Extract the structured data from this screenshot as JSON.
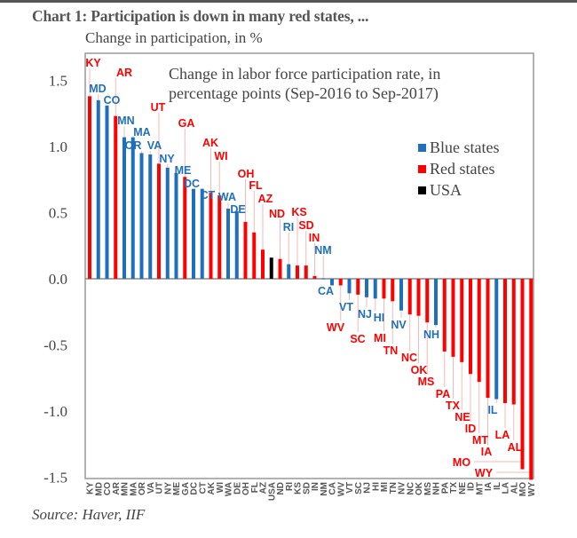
{
  "title": "Chart 1: Participation is down in many red states, ...",
  "subtitle": "Change in participation, in %",
  "source": "Source: Haver, IIF",
  "colors": {
    "Blue states": "#1f6fbf",
    "Red states": "#ff0000",
    "USA": "#000000"
  },
  "chart_data": {
    "type": "bar",
    "annotation": "Change in labor force participation rate, in percentage points (Sep-2016 to Sep-2017)",
    "annotation_lines": [
      "Change in labor force participation rate, in",
      "percentage points (Sep-2016 to Sep-2017)"
    ],
    "ylim": [
      -1.5,
      1.6
    ],
    "yticks": [
      "1.5",
      "1.0",
      "0.5",
      "0.0",
      "-0.5",
      "-1.0",
      "-1.5"
    ],
    "ytick_values": [
      1.5,
      1.0,
      0.5,
      0.0,
      -0.5,
      -1.0,
      -1.5
    ],
    "legend": {
      "position": "right",
      "entries": [
        "Blue states",
        "Red states",
        "USA"
      ]
    },
    "categories": [
      "KY",
      "MD",
      "CO",
      "AR",
      "MN",
      "MA",
      "OR",
      "VA",
      "UT",
      "NY",
      "ME",
      "GA",
      "DC",
      "CT",
      "AK",
      "WI",
      "WA",
      "DE",
      "OH",
      "FL",
      "AZ",
      "USA",
      "ND",
      "RI",
      "KS",
      "SD",
      "IN",
      "NM",
      "CA",
      "WV",
      "VT",
      "SC",
      "NJ",
      "HI",
      "MI",
      "TN",
      "NV",
      "NC",
      "OK",
      "MS",
      "NH",
      "PA",
      "TX",
      "NE",
      "ID",
      "MT",
      "IA",
      "IL",
      "LA",
      "AL",
      "MO",
      "WY"
    ],
    "groups": [
      "Red states",
      "Blue states",
      "Blue states",
      "Red states",
      "Blue states",
      "Blue states",
      "Blue states",
      "Blue states",
      "Red states",
      "Blue states",
      "Blue states",
      "Red states",
      "Blue states",
      "Blue states",
      "Red states",
      "Red states",
      "Blue states",
      "Blue states",
      "Red states",
      "Red states",
      "Red states",
      "USA",
      "Red states",
      "Blue states",
      "Red states",
      "Red states",
      "Red states",
      "Blue states",
      "Blue states",
      "Red states",
      "Blue states",
      "Red states",
      "Blue states",
      "Blue states",
      "Red states",
      "Red states",
      "Blue states",
      "Red states",
      "Red states",
      "Red states",
      "Blue states",
      "Red states",
      "Red states",
      "Red states",
      "Red states",
      "Red states",
      "Red states",
      "Blue states",
      "Red states",
      "Red states",
      "Red states",
      "Red states"
    ],
    "values": [
      1.38,
      1.35,
      1.31,
      1.23,
      1.07,
      1.07,
      0.95,
      0.94,
      0.87,
      0.84,
      0.8,
      0.77,
      0.68,
      0.68,
      0.65,
      0.63,
      0.53,
      0.51,
      0.43,
      0.35,
      0.22,
      0.16,
      0.15,
      0.11,
      0.1,
      0.1,
      0.02,
      0.003,
      -0.05,
      -0.05,
      -0.11,
      -0.12,
      -0.14,
      -0.15,
      -0.15,
      -0.17,
      -0.24,
      -0.27,
      -0.28,
      -0.33,
      -0.35,
      -0.55,
      -0.59,
      -0.63,
      -0.72,
      -0.78,
      -0.9,
      -0.91,
      -0.94,
      -0.95,
      -1.44,
      -1.52
    ]
  }
}
